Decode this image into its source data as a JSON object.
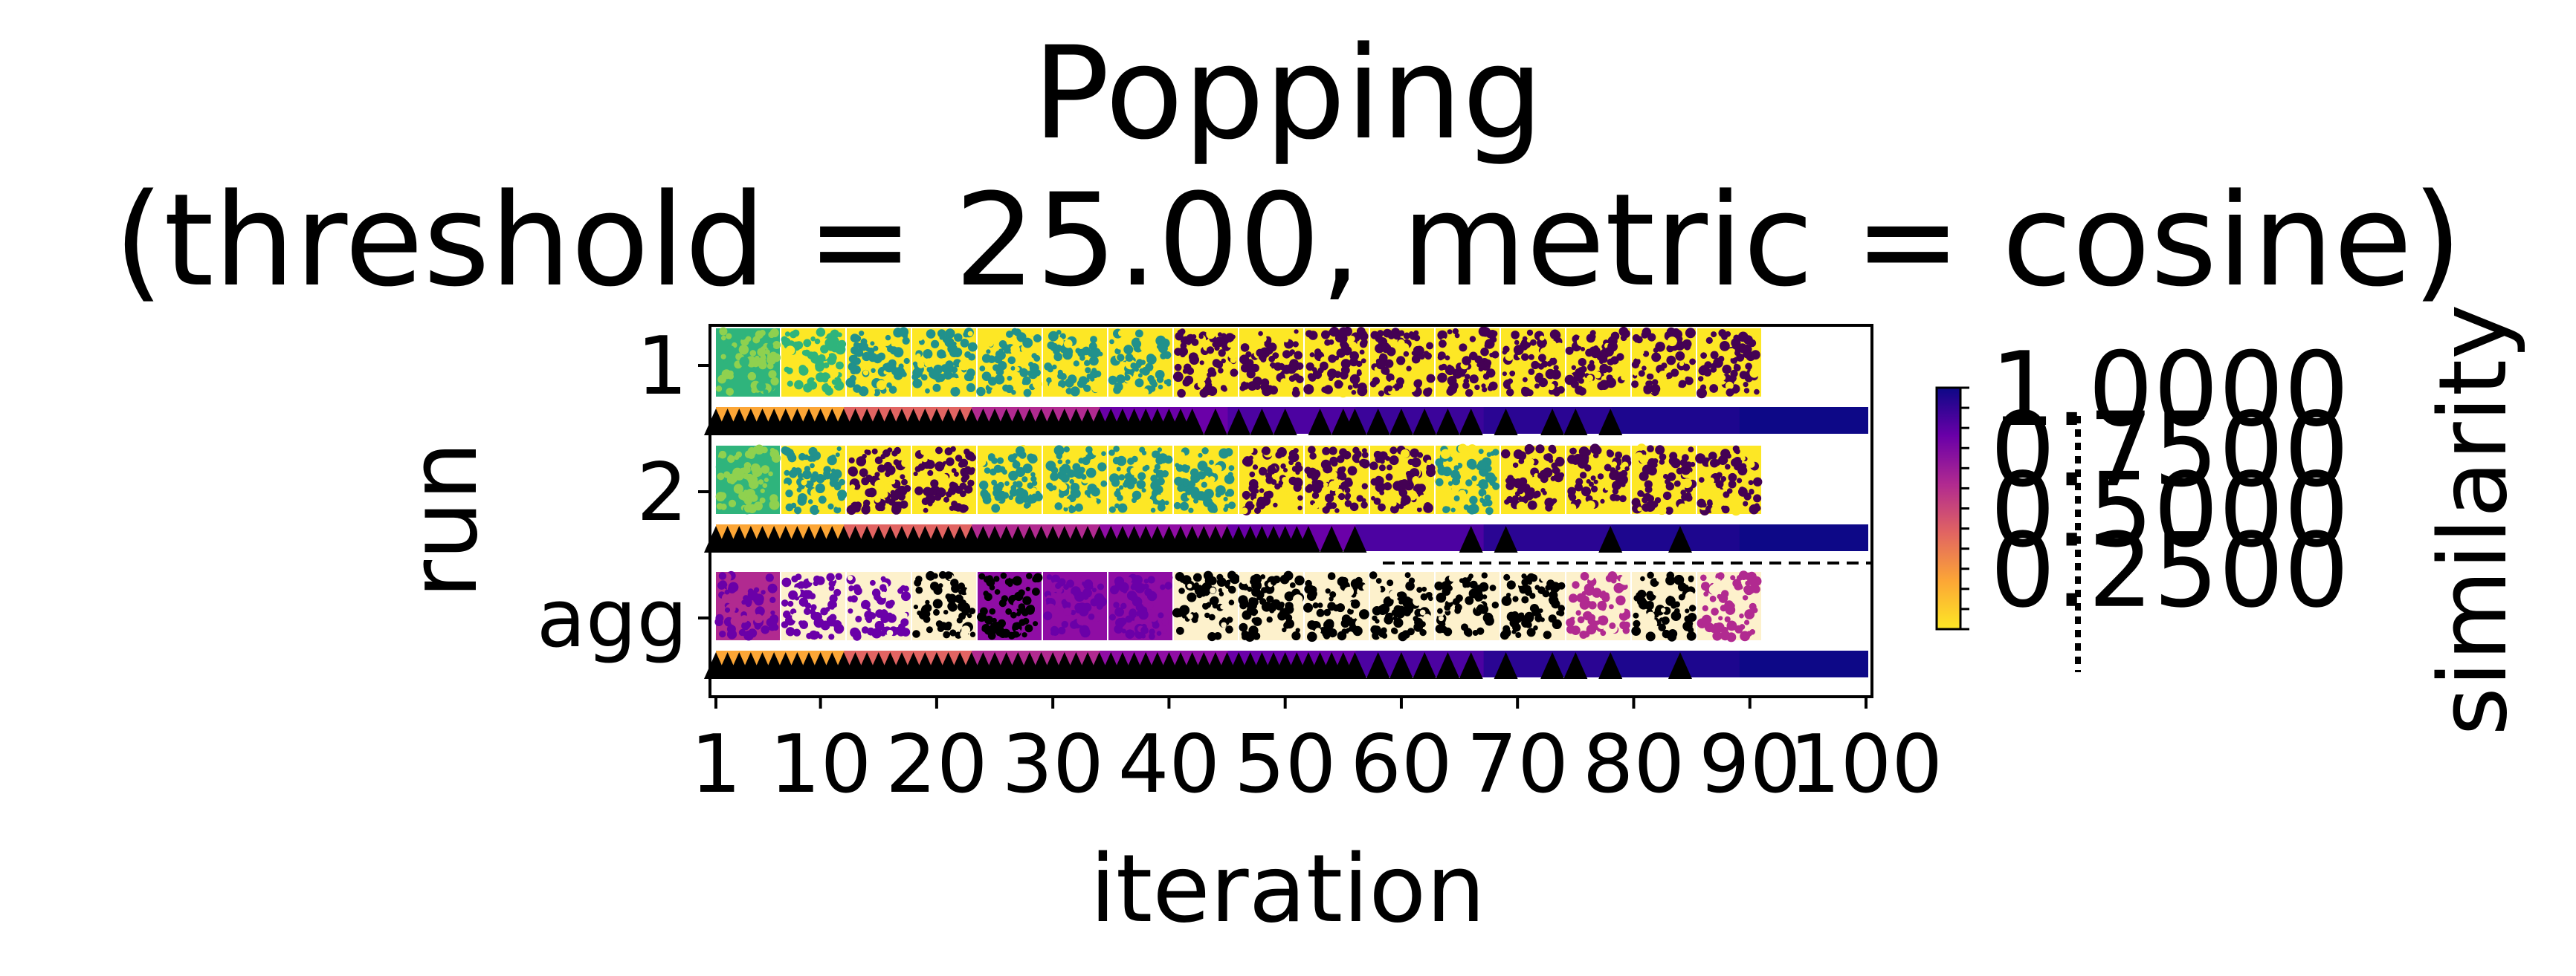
{
  "chart_data": {
    "type": "heatmap",
    "title_line1": "Popping",
    "title_line2": "(threshold = 25.00, metric = cosine)",
    "xlabel": "iteration",
    "ylabel": "run",
    "colorbar_label": "similarity",
    "xlim": [
      1,
      100
    ],
    "x_ticks": [
      1,
      10,
      20,
      30,
      40,
      50,
      60,
      70,
      80,
      90,
      100
    ],
    "x_tick_labels": [
      "1",
      "10",
      "20",
      "30",
      "40",
      "50",
      "60",
      "70",
      "80",
      "90",
      "100"
    ],
    "y_tick_labels": [
      "1",
      "2",
      "agg"
    ],
    "colorbar_ticks": [
      0.25,
      0.5,
      0.75,
      1.0
    ],
    "colorbar_tick_labels": [
      "0.2500",
      "0.5000",
      "0.7500",
      "1.0000"
    ],
    "rows": [
      {
        "name": "1",
        "tile_colors": [
          "#8fd14f",
          "#2fb47c",
          "#21918c",
          "#21918c",
          "#21918c",
          "#21918c",
          "#21918c",
          "#440154",
          "#440154",
          "#440154",
          "#440154",
          "#440154",
          "#440154",
          "#440154",
          "#440154",
          "#440154"
        ],
        "tile_backgrounds": [
          "#2fb47c",
          "#fde725",
          "#fde725",
          "#fde725",
          "#fde725",
          "#fde725",
          "#fde725",
          "#fde725",
          "#fde725",
          "#fde725",
          "#fde725",
          "#fde725",
          "#fde725",
          "#fde725",
          "#fde725",
          "#fde725"
        ],
        "strip_colors": [
          "#fca636",
          "#e16462",
          "#b12a90",
          "#6a00a8",
          "#4c02a1",
          "#3b049a",
          "#2a0593",
          "#1d068e",
          "#0d0887"
        ],
        "markers": [
          1,
          2,
          3,
          4,
          5,
          6,
          7,
          8,
          9,
          10,
          11,
          12,
          13,
          14,
          15,
          16,
          17,
          18,
          19,
          20,
          21,
          22,
          23,
          24,
          25,
          26,
          27,
          28,
          29,
          30,
          31,
          32,
          33,
          34,
          35,
          36,
          37,
          38,
          39,
          40,
          41,
          42,
          44,
          46,
          48,
          50,
          53,
          55,
          56,
          58,
          60,
          62,
          64,
          66,
          69,
          73,
          75,
          78
        ]
      },
      {
        "name": "2",
        "tile_colors": [
          "#8fd14f",
          "#21918c",
          "#440154",
          "#440154",
          "#21918c",
          "#21918c",
          "#21918c",
          "#21918c",
          "#440154",
          "#440154",
          "#440154",
          "#21918c",
          "#440154",
          "#440154",
          "#440154",
          "#440154"
        ],
        "tile_backgrounds": [
          "#2fb47c",
          "#fde725",
          "#fde725",
          "#fde725",
          "#fde725",
          "#fde725",
          "#fde725",
          "#fde725",
          "#fde725",
          "#fde725",
          "#fde725",
          "#fde725",
          "#fde725",
          "#fde725",
          "#fde725",
          "#fde725"
        ],
        "strip_colors": [
          "#fca636",
          "#e16462",
          "#b12a90",
          "#8f0da4",
          "#6a00a8",
          "#4c02a1",
          "#2a0593",
          "#1d068e",
          "#0d0887"
        ],
        "markers": [
          1,
          2,
          3,
          4,
          5,
          6,
          7,
          8,
          9,
          10,
          11,
          12,
          13,
          14,
          15,
          16,
          17,
          18,
          19,
          20,
          21,
          22,
          23,
          24,
          25,
          26,
          27,
          28,
          29,
          30,
          31,
          32,
          33,
          34,
          35,
          36,
          37,
          38,
          39,
          40,
          41,
          42,
          43,
          44,
          45,
          46,
          47,
          48,
          49,
          50,
          51,
          52,
          54,
          56,
          66,
          69,
          78,
          84
        ]
      },
      {
        "name": "agg",
        "tile_colors": [
          "#6a00a8",
          "#6a00a8",
          "#6a00a8",
          "#000000",
          "#000000",
          "#6a00a8",
          "#6a00a8",
          "#000000",
          "#000000",
          "#000000",
          "#000000",
          "#000000",
          "#000000",
          "#b12a90",
          "#000000",
          "#b12a90"
        ],
        "tile_backgrounds": [
          "#b12a90",
          "#fdf1cc",
          "#fdf1cc",
          "#fdf1cc",
          "#8f0da4",
          "#8f0da4",
          "#8f0da4",
          "#fdf1cc",
          "#fdf1cc",
          "#fdf1cc",
          "#fdf1cc",
          "#fdf1cc",
          "#fdf1cc",
          "#fdf1cc",
          "#fdf1cc",
          "#fdf1cc"
        ],
        "strip_colors": [
          "#fca636",
          "#e16462",
          "#b12a90",
          "#8f0da4",
          "#6a00a8",
          "#4c02a1",
          "#2a0593",
          "#1d068e",
          "#0d0887"
        ],
        "markers": [
          1,
          2,
          3,
          4,
          5,
          6,
          7,
          8,
          9,
          10,
          11,
          12,
          13,
          14,
          15,
          16,
          17,
          18,
          19,
          20,
          21,
          22,
          23,
          24,
          25,
          26,
          27,
          28,
          29,
          30,
          31,
          32,
          33,
          34,
          35,
          36,
          37,
          38,
          39,
          40,
          41,
          42,
          43,
          44,
          45,
          46,
          47,
          48,
          49,
          50,
          51,
          52,
          53,
          54,
          55,
          56,
          58,
          60,
          62,
          64,
          66,
          69,
          73,
          75,
          78,
          84
        ]
      }
    ],
    "colormap": [
      "#fde725",
      "#fca636",
      "#e16462",
      "#b12a90",
      "#6a00a8",
      "#0d0887"
    ]
  }
}
